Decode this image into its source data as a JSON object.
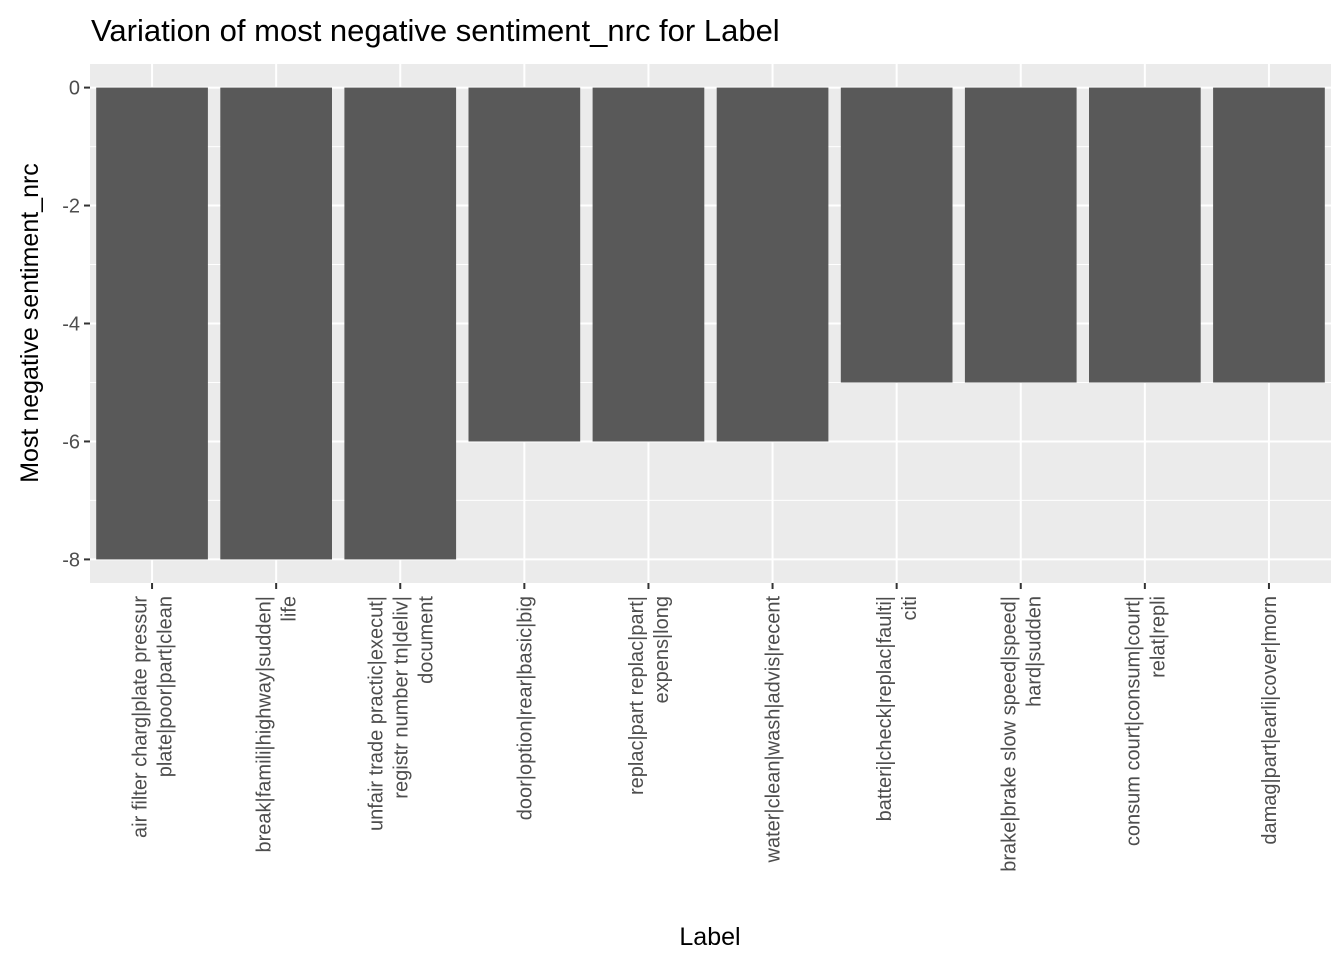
{
  "chart_data": {
    "type": "bar",
    "title": "Variation of most negative sentiment_nrc for Label",
    "xlabel": "Label",
    "ylabel": "Most negative sentiment_nrc",
    "ylim": [
      -8.4,
      0.4
    ],
    "yticks": [
      "0",
      "-2",
      "-4",
      "-6",
      "-8"
    ],
    "ytick_values": [
      0,
      -2,
      -4,
      -6,
      -8
    ],
    "categories": [
      [
        "air filter charg|plate pressur",
        "plate|poor|part|clean"
      ],
      [
        "break|famili|highway|sudden|",
        "life"
      ],
      [
        "unfair trade practic|execut|",
        "registr number tn|deliv|",
        "document"
      ],
      [
        "door|option|rear|basic|big"
      ],
      [
        "replac|part replac|part|",
        "expens|long"
      ],
      [
        "water|clean|wash|advis|recent"
      ],
      [
        "batteri|check|replac|faulti|",
        "citi"
      ],
      [
        "brake|brake slow speed|speed|",
        "hard|sudden"
      ],
      [
        "consum court|consum|court|",
        "relat|repli"
      ],
      [
        "damag|part|earli|cover|morn"
      ]
    ],
    "values": [
      -8,
      -8,
      -8,
      -6,
      -6,
      -6,
      -5,
      -5,
      -5,
      -5
    ],
    "grid": true,
    "legend": "none",
    "colors": {
      "panel": "#ebebeb",
      "grid_major": "#ffffff",
      "bar": "#595959",
      "tick_text": "#4d4d4d",
      "axis_ticks": "#333333",
      "title": "#000000"
    }
  }
}
